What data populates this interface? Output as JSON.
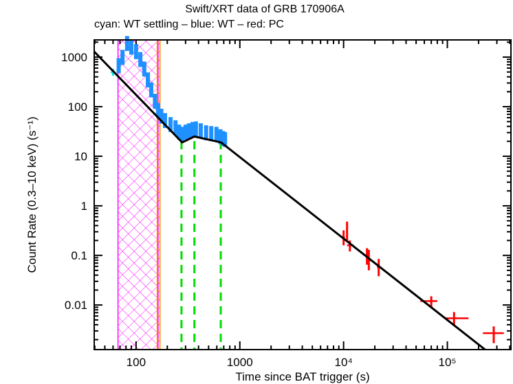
{
  "chart_data": {
    "type": "scatter",
    "title": "Swift/XRT data of GRB 170906A",
    "subtitle": "cyan: WT settling – blue: WT – red: PC",
    "xlabel": "Time since BAT trigger (s)",
    "ylabel": "Count Rate (0.3–10 keV) (s⁻¹)",
    "xscale": "log",
    "yscale": "log",
    "xlim": [
      39.5,
      410000
    ],
    "ylim": [
      0.00126,
      2220
    ],
    "x_ticks": [
      {
        "v": 100,
        "label": "100"
      },
      {
        "v": 1000,
        "label": "1000"
      },
      {
        "v": 10000,
        "label": "10⁴"
      },
      {
        "v": 100000,
        "label": "10⁵"
      }
    ],
    "y_ticks": [
      {
        "v": 1000,
        "label": "1000"
      },
      {
        "v": 100,
        "label": "100"
      },
      {
        "v": 10,
        "label": "10"
      },
      {
        "v": 1,
        "label": "1"
      },
      {
        "v": 0.1,
        "label": "0.1"
      },
      {
        "v": 0.01,
        "label": "0.01"
      }
    ],
    "grid": false,
    "colors": {
      "wt_settling": "#00e5e5",
      "wt": "#1e90ff",
      "pc": "#ff0000",
      "model": "#000000",
      "breaks": "#00dd00",
      "hatch_magenta": "#ff00ff",
      "hatch_orange": "#ff8c00"
    },
    "series": [
      {
        "name": "WT settling",
        "color": "#00e5e5",
        "points": [
          {
            "x": 60,
            "y": 495,
            "xerr": [
              57,
              63
            ],
            "yerr": [
              420,
              580
            ]
          }
        ]
      },
      {
        "name": "WT",
        "color": "#1e90ff",
        "points": [
          {
            "x": 68,
            "y": 680
          },
          {
            "x": 74,
            "y": 1000
          },
          {
            "x": 82,
            "y": 1900
          },
          {
            "x": 90,
            "y": 1600
          },
          {
            "x": 100,
            "y": 1300
          },
          {
            "x": 110,
            "y": 900
          },
          {
            "x": 120,
            "y": 580
          },
          {
            "x": 130,
            "y": 350
          },
          {
            "x": 140,
            "y": 220
          },
          {
            "x": 152,
            "y": 130
          },
          {
            "x": 163,
            "y": 85
          },
          {
            "x": 175,
            "y": 65
          },
          {
            "x": 190,
            "y": 53
          },
          {
            "x": 215,
            "y": 44
          },
          {
            "x": 240,
            "y": 38
          },
          {
            "x": 260,
            "y": 31
          },
          {
            "x": 278,
            "y": 28
          },
          {
            "x": 300,
            "y": 31
          },
          {
            "x": 323,
            "y": 33
          },
          {
            "x": 350,
            "y": 35
          },
          {
            "x": 377,
            "y": 36
          },
          {
            "x": 420,
            "y": 33
          },
          {
            "x": 473,
            "y": 30
          },
          {
            "x": 530,
            "y": 29
          },
          {
            "x": 595,
            "y": 28
          },
          {
            "x": 650,
            "y": 25
          },
          {
            "x": 690,
            "y": 23
          },
          {
            "x": 720,
            "y": 22
          }
        ]
      },
      {
        "name": "PC",
        "color": "#ff0000",
        "points": [
          {
            "x": 10000,
            "y": 0.23,
            "xerr": [
              9800,
              10300
            ],
            "yerr": [
              0.16,
              0.32
            ]
          },
          {
            "x": 10800,
            "y": 0.3,
            "xerr": [
              10600,
              11000
            ],
            "yerr": [
              0.2,
              0.48
            ]
          },
          {
            "x": 11500,
            "y": 0.16,
            "xerr": [
              10800,
              12500
            ],
            "yerr": [
              0.12,
              0.2
            ]
          },
          {
            "x": 16800,
            "y": 0.1,
            "xerr": [
              16000,
              17500
            ],
            "yerr": [
              0.065,
              0.14
            ]
          },
          {
            "x": 17500,
            "y": 0.08,
            "xerr": [
              17000,
              18200
            ],
            "yerr": [
              0.05,
              0.13
            ]
          },
          {
            "x": 21800,
            "y": 0.058,
            "xerr": [
              21000,
              22600
            ],
            "yerr": [
              0.038,
              0.085
            ]
          },
          {
            "x": 70000,
            "y": 0.012,
            "xerr": [
              55000,
              80000
            ],
            "yerr": [
              0.009,
              0.015
            ]
          },
          {
            "x": 116000,
            "y": 0.0054,
            "xerr": [
              95000,
              160000
            ],
            "yerr": [
              0.0038,
              0.0072
            ]
          },
          {
            "x": 280000,
            "y": 0.0027,
            "xerr": [
              220000,
              350000
            ],
            "yerr": [
              0.0017,
              0.0037
            ]
          }
        ]
      }
    ],
    "model": {
      "name": "",
      "color": "#000000",
      "points": [
        {
          "x": 39.5,
          "y": 1290
        },
        {
          "x": 278,
          "y": 19
        },
        {
          "x": 365,
          "y": 25
        },
        {
          "x": 660,
          "y": 19
        },
        {
          "x": 231000,
          "y": 0.00126
        }
      ]
    },
    "break_lines": [
      274,
      365,
      655
    ],
    "shaded_regions": [
      {
        "from": 67,
        "to": 163,
        "color": "#ff00ff"
      },
      {
        "from": 160,
        "to": 170,
        "color": "#ff8c00"
      }
    ]
  }
}
